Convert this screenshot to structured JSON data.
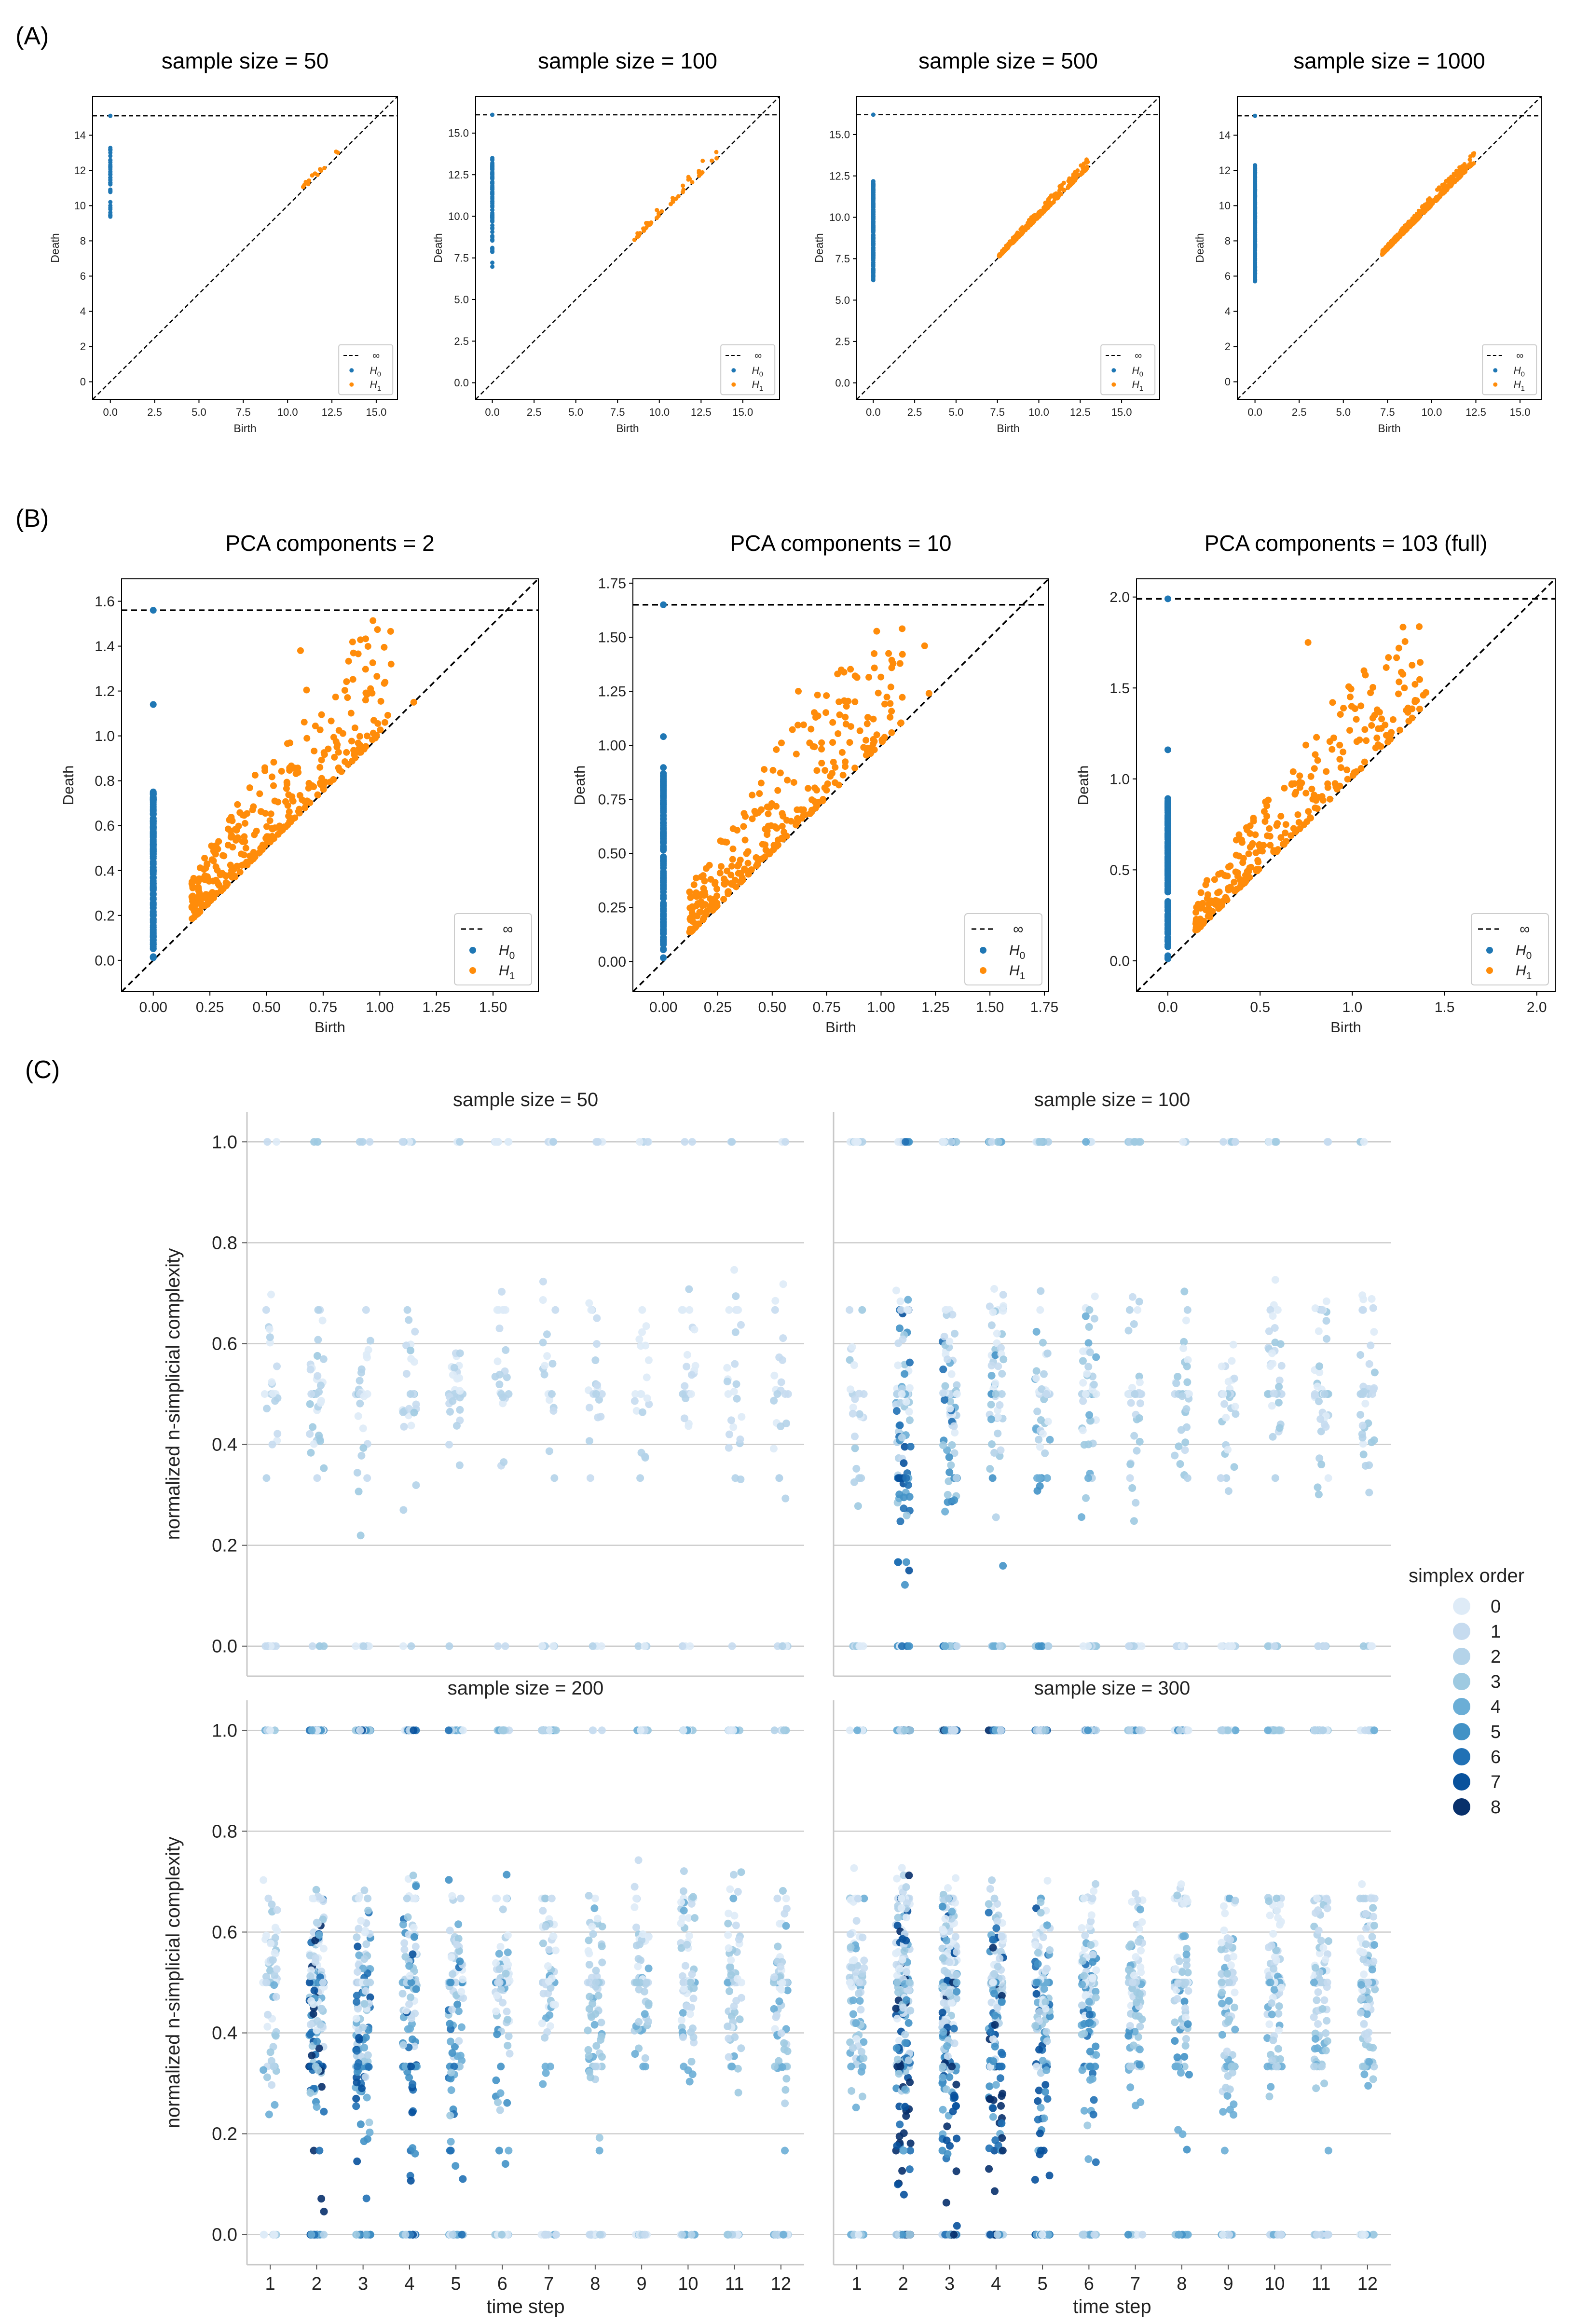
{
  "figure": {
    "panel_labels": [
      "(A)",
      "(B)",
      "(C)"
    ]
  },
  "colors": {
    "h0": "#1f77b4",
    "h1": "#ff8c0a",
    "diagonal": "#000000",
    "grid": "#cccccc",
    "order_scale": [
      "#deebf7",
      "#c6dbef",
      "#b4d3e9",
      "#9ecae1",
      "#6baed6",
      "#4292c6",
      "#2171b5",
      "#08519c",
      "#08306b"
    ]
  },
  "chart_data": [
    {
      "id": "A1",
      "type": "scatter",
      "subtype": "persistence-diagram",
      "panel": "A",
      "title": "sample size = 50",
      "xlabel": "Birth",
      "ylabel": "Death",
      "xlim": [
        -1,
        16.2
      ],
      "ylim": [
        -1,
        16.2
      ],
      "xticks": [
        0.0,
        2.5,
        5.0,
        7.5,
        10.0,
        12.5,
        15.0
      ],
      "xtick_labels": [
        "0.0",
        "2.5",
        "5.0",
        "7.5",
        "10.0",
        "12.5",
        "15.0"
      ],
      "yticks": [
        0,
        2,
        4,
        6,
        8,
        10,
        12,
        14
      ],
      "ytick_labels": [
        "0",
        "2",
        "4",
        "6",
        "8",
        "10",
        "12",
        "14"
      ],
      "infinity": 15.1,
      "legend": [
        "∞",
        "H0",
        "H1"
      ],
      "series": [
        {
          "name": "H0",
          "birth": 0,
          "death_range": [
            9.3,
            13.3
          ],
          "n": 40
        },
        {
          "name": "H1",
          "birth_range": [
            10.3,
            13.0
          ],
          "n": 14,
          "min_persistence": 0.05,
          "max_persistence": 0.5
        }
      ]
    },
    {
      "id": "A2",
      "type": "scatter",
      "subtype": "persistence-diagram",
      "panel": "A",
      "title": "sample size = 100",
      "xlabel": "Birth",
      "ylabel": "Death",
      "xlim": [
        -1,
        17.2
      ],
      "ylim": [
        -1,
        17.2
      ],
      "xticks": [
        0.0,
        2.5,
        5.0,
        7.5,
        10.0,
        12.5,
        15.0
      ],
      "xtick_labels": [
        "0.0",
        "2.5",
        "5.0",
        "7.5",
        "10.0",
        "12.5",
        "15.0"
      ],
      "yticks": [
        0.0,
        2.5,
        5.0,
        7.5,
        10.0,
        12.5,
        15.0
      ],
      "ytick_labels": [
        "0.0",
        "2.5",
        "5.0",
        "7.5",
        "10.0",
        "12.5",
        "15.0"
      ],
      "infinity": 16.1,
      "legend": [
        "∞",
        "H0",
        "H1"
      ],
      "series": [
        {
          "name": "H0",
          "birth": 0,
          "death_range": [
            6.9,
            13.5
          ],
          "n": 80
        },
        {
          "name": "H1",
          "birth_range": [
            8.5,
            13.5
          ],
          "n": 45,
          "min_persistence": 0.05,
          "max_persistence": 0.8
        }
      ]
    },
    {
      "id": "A3",
      "type": "scatter",
      "subtype": "persistence-diagram",
      "panel": "A",
      "title": "sample size = 500",
      "xlabel": "Birth",
      "ylabel": "Death",
      "xlim": [
        -1,
        17.3
      ],
      "ylim": [
        -1,
        17.3
      ],
      "xticks": [
        0.0,
        2.5,
        5.0,
        7.5,
        10.0,
        12.5,
        15.0
      ],
      "xtick_labels": [
        "0.0",
        "2.5",
        "5.0",
        "7.5",
        "10.0",
        "12.5",
        "15.0"
      ],
      "yticks": [
        0.0,
        2.5,
        5.0,
        7.5,
        10.0,
        12.5,
        15.0
      ],
      "ytick_labels": [
        "0.0",
        "2.5",
        "5.0",
        "7.5",
        "10.0",
        "12.5",
        "15.0"
      ],
      "infinity": 16.2,
      "legend": [
        "∞",
        "H0",
        "H1"
      ],
      "series": [
        {
          "name": "H0",
          "birth": 0,
          "death_range": [
            6.2,
            12.2
          ],
          "n": 200
        },
        {
          "name": "H1",
          "birth_range": [
            7.6,
            13.0
          ],
          "n": 260,
          "min_persistence": 0.02,
          "max_persistence": 0.6
        }
      ]
    },
    {
      "id": "A4",
      "type": "scatter",
      "subtype": "persistence-diagram",
      "panel": "A",
      "title": "sample size = 1000",
      "xlabel": "Birth",
      "ylabel": "Death",
      "xlim": [
        -1,
        16.2
      ],
      "ylim": [
        -1,
        16.2
      ],
      "xticks": [
        0.0,
        2.5,
        5.0,
        7.5,
        10.0,
        12.5,
        15.0
      ],
      "xtick_labels": [
        "0.0",
        "2.5",
        "5.0",
        "7.5",
        "10.0",
        "12.5",
        "15.0"
      ],
      "yticks": [
        0,
        2,
        4,
        6,
        8,
        10,
        12,
        14
      ],
      "ytick_labels": [
        "0",
        "2",
        "4",
        "6",
        "8",
        "10",
        "12",
        "14"
      ],
      "infinity": 15.1,
      "legend": [
        "∞",
        "H0",
        "H1"
      ],
      "series": [
        {
          "name": "H0",
          "birth": 0,
          "death_range": [
            5.6,
            12.3
          ],
          "n": 300
        },
        {
          "name": "H1",
          "birth_range": [
            7.2,
            12.4
          ],
          "n": 400,
          "min_persistence": 0.02,
          "max_persistence": 0.6
        }
      ]
    },
    {
      "id": "B1",
      "type": "scatter",
      "subtype": "persistence-diagram",
      "panel": "B",
      "title": "PCA components = 2",
      "xlabel": "Birth",
      "ylabel": "Death",
      "xlim": [
        -0.14,
        1.7
      ],
      "ylim": [
        -0.14,
        1.7
      ],
      "xticks": [
        0.0,
        0.25,
        0.5,
        0.75,
        1.0,
        1.25,
        1.5
      ],
      "xtick_labels": [
        "0.00",
        "0.25",
        "0.50",
        "0.75",
        "1.00",
        "1.25",
        "1.50"
      ],
      "yticks": [
        0.0,
        0.2,
        0.4,
        0.6,
        0.8,
        1.0,
        1.2,
        1.4,
        1.6
      ],
      "ytick_labels": [
        "0.0",
        "0.2",
        "0.4",
        "0.6",
        "0.8",
        "1.0",
        "1.2",
        "1.4",
        "1.6"
      ],
      "infinity": 1.56,
      "legend": [
        "∞",
        "H0",
        "H1"
      ],
      "series": [
        {
          "name": "H0",
          "birth": 0,
          "death_range": [
            0.0,
            0.76
          ],
          "n": 160,
          "outliers": [
            1.14
          ]
        },
        {
          "name": "H1",
          "birth_range": [
            0.17,
            1.05
          ],
          "n": 330,
          "min_persistence": 0.01,
          "max_persistence": 0.55,
          "outliers": [
            [
              0.65,
              1.38
            ],
            [
              1.05,
              1.32
            ],
            [
              1.15,
              1.15
            ]
          ]
        }
      ]
    },
    {
      "id": "B2",
      "type": "scatter",
      "subtype": "persistence-diagram",
      "panel": "B",
      "title": "PCA components = 10",
      "xlabel": "Birth",
      "ylabel": "Death",
      "xlim": [
        -0.14,
        1.77
      ],
      "ylim": [
        -0.14,
        1.77
      ],
      "xticks": [
        0.0,
        0.25,
        0.5,
        0.75,
        1.0,
        1.25,
        1.5,
        1.75
      ],
      "xtick_labels": [
        "0.00",
        "0.25",
        "0.50",
        "0.75",
        "1.00",
        "1.25",
        "1.50",
        "1.75"
      ],
      "yticks": [
        0.0,
        0.25,
        0.5,
        0.75,
        1.0,
        1.25,
        1.5,
        1.75
      ],
      "ytick_labels": [
        "0.00",
        "0.25",
        "0.50",
        "0.75",
        "1.00",
        "1.25",
        "1.50",
        "1.75"
      ],
      "infinity": 1.65,
      "legend": [
        "∞",
        "H0",
        "H1"
      ],
      "series": [
        {
          "name": "H0",
          "birth": 0,
          "death_range": [
            0.0,
            0.9
          ],
          "n": 150,
          "outliers": [
            1.04
          ]
        },
        {
          "name": "H1",
          "birth_range": [
            0.12,
            1.1
          ],
          "n": 300,
          "min_persistence": 0.01,
          "max_persistence": 0.6,
          "outliers": [
            [
              1.2,
              1.46
            ],
            [
              0.8,
              1.33
            ],
            [
              0.62,
              1.25
            ],
            [
              1.22,
              1.24
            ]
          ]
        }
      ]
    },
    {
      "id": "B3",
      "type": "scatter",
      "subtype": "persistence-diagram",
      "panel": "B",
      "title": "PCA components = 103 (full)",
      "xlabel": "Birth",
      "ylabel": "Death",
      "xlim": [
        -0.17,
        2.1
      ],
      "ylim": [
        -0.17,
        2.1
      ],
      "xticks": [
        0.0,
        0.5,
        1.0,
        1.5,
        2.0
      ],
      "xtick_labels": [
        "0.0",
        "0.5",
        "1.0",
        "1.5",
        "2.0"
      ],
      "yticks": [
        0.0,
        0.5,
        1.0,
        1.5,
        2.0
      ],
      "ytick_labels": [
        "0.0",
        "0.5",
        "1.0",
        "1.5",
        "2.0"
      ],
      "infinity": 1.99,
      "legend": [
        "∞",
        "H0",
        "H1"
      ],
      "series": [
        {
          "name": "H0",
          "birth": 0,
          "death_range": [
            0.0,
            0.9
          ],
          "n": 150,
          "outliers": [
            1.16
          ]
        },
        {
          "name": "H1",
          "birth_range": [
            0.15,
            1.4
          ],
          "n": 280,
          "min_persistence": 0.01,
          "max_persistence": 0.55,
          "outliers": [
            [
              0.76,
              1.75
            ],
            [
              1.34,
              1.52
            ]
          ]
        }
      ]
    },
    {
      "id": "C",
      "type": "scatter",
      "subtype": "stripplot-grid",
      "panel": "C",
      "xlabel": "time step",
      "ylabel": "normalized n-simplicial complexity",
      "categories": [
        "1",
        "2",
        "3",
        "4",
        "5",
        "6",
        "7",
        "8",
        "9",
        "10",
        "11",
        "12"
      ],
      "ylim": [
        -0.05,
        1.05
      ],
      "yticks": [
        0.0,
        0.2,
        0.4,
        0.6,
        0.8,
        1.0
      ],
      "ytick_labels": [
        "0.0",
        "0.2",
        "0.4",
        "0.6",
        "0.8",
        "1.0"
      ],
      "legend_title": "simplex order",
      "legend_labels": [
        "0",
        "1",
        "2",
        "3",
        "4",
        "5",
        "6",
        "7",
        "8"
      ],
      "facets": [
        {
          "title": "sample size = 50",
          "points_per_step": [
            28,
            40,
            38,
            30,
            30,
            32,
            28,
            28,
            28,
            28,
            28,
            28
          ],
          "max_order_per_step": [
            2,
            3,
            3,
            3,
            2,
            2,
            2,
            2,
            2,
            2,
            2,
            2
          ]
        },
        {
          "title": "sample size = 100",
          "points_per_step": [
            40,
            110,
            90,
            70,
            60,
            55,
            48,
            45,
            45,
            45,
            45,
            45
          ],
          "max_order_per_step": [
            3,
            7,
            6,
            5,
            5,
            4,
            3,
            3,
            3,
            3,
            3,
            3
          ]
        },
        {
          "title": "sample size = 200",
          "points_per_step": [
            70,
            200,
            170,
            130,
            110,
            95,
            85,
            80,
            80,
            80,
            80,
            80
          ],
          "max_order_per_step": [
            4,
            8,
            7,
            7,
            6,
            5,
            4,
            4,
            4,
            4,
            4,
            4
          ]
        },
        {
          "title": "sample size = 300",
          "points_per_step": [
            100,
            260,
            240,
            190,
            160,
            130,
            120,
            110,
            110,
            110,
            110,
            110
          ],
          "max_order_per_step": [
            4,
            8,
            8,
            8,
            7,
            6,
            5,
            5,
            4,
            4,
            4,
            4
          ]
        }
      ]
    }
  ]
}
